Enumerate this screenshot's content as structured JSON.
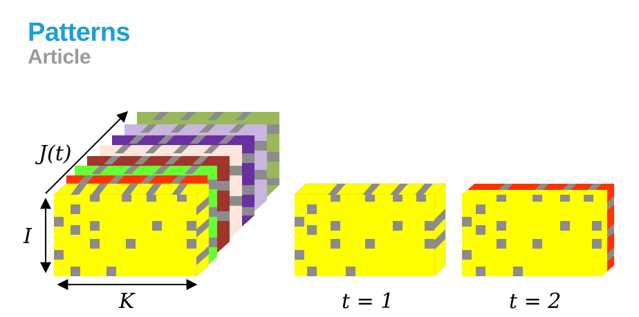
{
  "header": {
    "journal": "Patterns",
    "article_type": "Article"
  },
  "labels": {
    "axis_j": "J(t)",
    "axis_i": "I",
    "axis_k": "K",
    "slice1": "t = 1",
    "slice2": "t = 2"
  },
  "colors": {
    "yellow": "#ffff00",
    "gray": "#8c8c8c",
    "red": "#ff3300",
    "green": "#66ff33",
    "brown": "#a0352c",
    "cream": "#ffe6dc",
    "purple": "#6a2fa0",
    "lavender": "#c8b6e0",
    "olive": "#99b85a"
  }
}
